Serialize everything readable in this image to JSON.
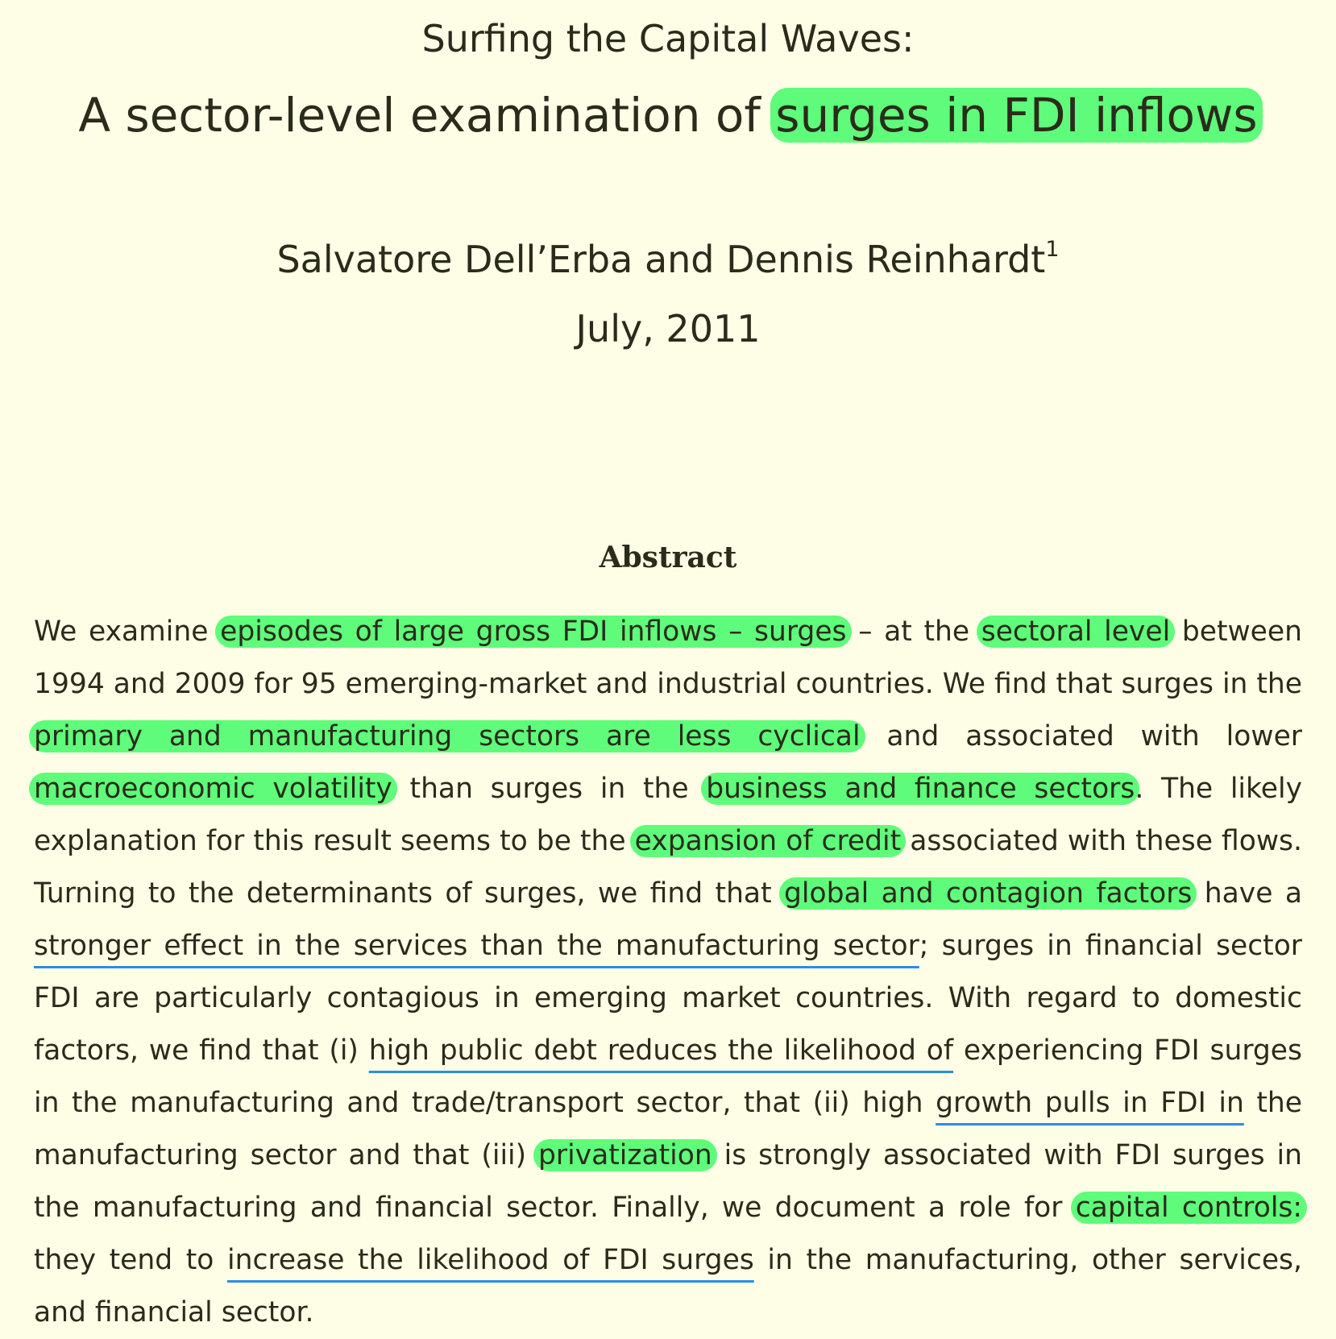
{
  "title": {
    "line1": "Surfing the Capital Waves:",
    "line2_prefix": "A sector-level examination of ",
    "line2_highlight": "surges in FDI inflows"
  },
  "authors": "Salvatore Dell’Erba and Dennis Reinhardt",
  "footnote_marker": "1",
  "date": "July, 2011",
  "abstract": {
    "heading": "Abstract",
    "segments": [
      {
        "text": "We examine ",
        "style": "plain"
      },
      {
        "text": "episodes of large gross FDI inflows – surges",
        "style": "highlight"
      },
      {
        "text": " – at the ",
        "style": "plain"
      },
      {
        "text": "sectoral level",
        "style": "highlight"
      },
      {
        "text": " between 1994 and 2009 for 95 emerging-market and industrial countries. We find that surges in the ",
        "style": "plain"
      },
      {
        "text": "primary and manufacturing sectors are less cyclical",
        "style": "highlight"
      },
      {
        "text": " and associated with lower ",
        "style": "plain"
      },
      {
        "text": "macroeconomic volatility",
        "style": "highlight"
      },
      {
        "text": " than surges in the ",
        "style": "plain"
      },
      {
        "text": "business and finance sectors",
        "style": "highlight"
      },
      {
        "text": ". The likely explanation for this result seems to be the ",
        "style": "plain"
      },
      {
        "text": "expansion of credit",
        "style": "highlight"
      },
      {
        "text": " associated with these flows. Turning to the determinants of surges, we find that ",
        "style": "plain"
      },
      {
        "text": "global and contagion factors",
        "style": "highlight"
      },
      {
        "text": " have a ",
        "style": "plain"
      },
      {
        "text": "stronger effect in the services than the manufacturing sector",
        "style": "underline"
      },
      {
        "text": "; surges in financial sector FDI are particularly contagious in emerging market countries. With regard to domestic factors, we find that (i) ",
        "style": "plain"
      },
      {
        "text": "high public debt reduces the likelihood of",
        "style": "underline"
      },
      {
        "text": " experiencing FDI surges in the manufacturing and trade/transport sector, that (ii) high ",
        "style": "plain"
      },
      {
        "text": "growth pulls in FDI in",
        "style": "underline"
      },
      {
        "text": " the manufacturing sector and that (iii) ",
        "style": "plain"
      },
      {
        "text": "privatization",
        "style": "highlight"
      },
      {
        "text": " is strongly associated with FDI surges in the manufacturing and financial sector. Finally, we document a role for ",
        "style": "plain"
      },
      {
        "text": "capital controls:",
        "style": "highlight"
      },
      {
        "text": " they tend to ",
        "style": "plain"
      },
      {
        "text": "increase the likelihood of FDI surges",
        "style": "underline"
      },
      {
        "text": " in the manufacturing, other services, and financial sector.",
        "style": "plain"
      }
    ]
  },
  "colors": {
    "background": "#fefde6",
    "text": "#2b2b1c",
    "highlight": "#5efc7a",
    "underline": "#2a8de6"
  }
}
